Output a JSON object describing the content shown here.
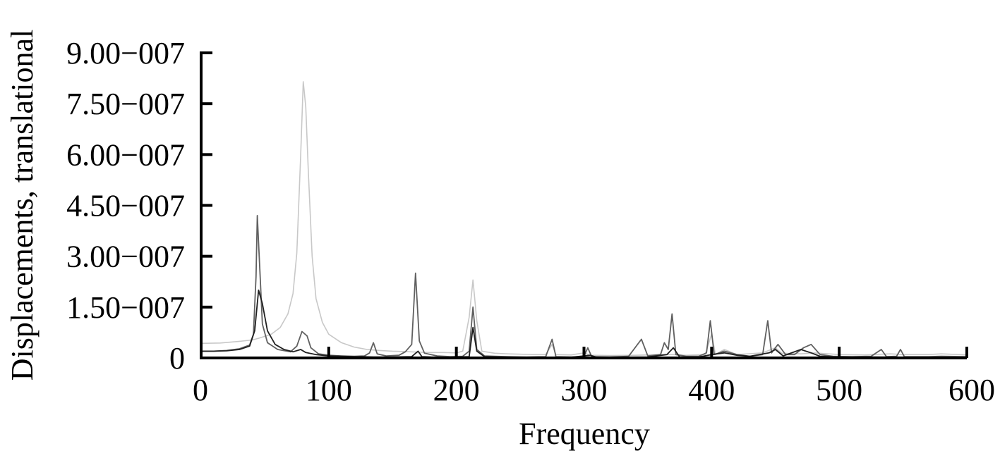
{
  "chart_data": {
    "type": "line",
    "title": "",
    "xlabel": "Frequency",
    "ylabel": "Displacements, translational",
    "xlim": [
      0,
      600
    ],
    "ylim": [
      0,
      9e-07
    ],
    "grid": false,
    "legend": "none",
    "x_ticks": [
      {
        "value": 0,
        "label": "0"
      },
      {
        "value": 100,
        "label": "100"
      },
      {
        "value": 200,
        "label": "200"
      },
      {
        "value": 300,
        "label": "300"
      },
      {
        "value": 400,
        "label": "400"
      },
      {
        "value": 500,
        "label": "500"
      },
      {
        "value": 600,
        "label": "600"
      }
    ],
    "y_ticks": [
      {
        "value": 0,
        "label": "0"
      },
      {
        "value": 1.5e-07,
        "label": "1.50−007"
      },
      {
        "value": 3e-07,
        "label": "3.00−007"
      },
      {
        "value": 4.5e-07,
        "label": "4.50−007"
      },
      {
        "value": 6e-07,
        "label": "6.00−007"
      },
      {
        "value": 7.5e-07,
        "label": "7.50−007"
      },
      {
        "value": 9e-07,
        "label": "9.00−007"
      }
    ],
    "series": [
      {
        "color": "#c8c8c8",
        "points": [
          [
            0,
            4.3e-08
          ],
          [
            15,
            4.4e-08
          ],
          [
            30,
            4.9e-08
          ],
          [
            40,
            5.3e-08
          ],
          [
            45,
            5.8e-08
          ],
          [
            55,
            7e-08
          ],
          [
            62,
            9e-08
          ],
          [
            68,
            1.3e-07
          ],
          [
            72,
            1.9e-07
          ],
          [
            75,
            3.1e-07
          ],
          [
            78,
            6e-07
          ],
          [
            80,
            8.15e-07
          ],
          [
            82,
            7.4e-07
          ],
          [
            84,
            5.5e-07
          ],
          [
            87,
            3e-07
          ],
          [
            90,
            1.75e-07
          ],
          [
            95,
            1.05e-07
          ],
          [
            100,
            7e-08
          ],
          [
            110,
            4.5e-08
          ],
          [
            120,
            3.2e-08
          ],
          [
            130,
            2.5e-08
          ],
          [
            140,
            2.2e-08
          ],
          [
            150,
            2e-08
          ],
          [
            160,
            1.9e-08
          ],
          [
            170,
            1.7e-08
          ],
          [
            180,
            1.6e-08
          ],
          [
            190,
            1.6e-08
          ],
          [
            200,
            1.5e-08
          ],
          [
            205,
            2e-08
          ],
          [
            210,
            1.2e-07
          ],
          [
            213,
            2.3e-07
          ],
          [
            216,
            1.1e-07
          ],
          [
            220,
            2e-08
          ],
          [
            230,
            1.4e-08
          ],
          [
            240,
            1.2e-08
          ],
          [
            250,
            1.1e-08
          ],
          [
            260,
            1e-08
          ],
          [
            270,
            1e-08
          ],
          [
            275,
            4e-08
          ],
          [
            278,
            1e-08
          ],
          [
            290,
            9e-09
          ],
          [
            300,
            1.5e-08
          ],
          [
            305,
            8e-09
          ],
          [
            320,
            7e-09
          ],
          [
            340,
            8e-09
          ],
          [
            350,
            9e-09
          ],
          [
            360,
            1e-08
          ],
          [
            370,
            1e-08
          ],
          [
            380,
            8e-09
          ],
          [
            395,
            1e-08
          ],
          [
            400,
            7e-08
          ],
          [
            403,
            1e-08
          ],
          [
            410,
            2.5e-08
          ],
          [
            420,
            1e-08
          ],
          [
            440,
            1.5e-08
          ],
          [
            450,
            3e-08
          ],
          [
            455,
            1.4e-08
          ],
          [
            470,
            1.2e-08
          ],
          [
            480,
            1.5e-08
          ],
          [
            500,
            1e-08
          ],
          [
            520,
            9e-09
          ],
          [
            540,
            1.2e-08
          ],
          [
            550,
            1e-08
          ],
          [
            570,
            1e-08
          ],
          [
            580,
            1.2e-08
          ],
          [
            600,
            9e-09
          ]
        ]
      },
      {
        "color": "#606060",
        "points": [
          [
            0,
            2e-08
          ],
          [
            10,
            2e-08
          ],
          [
            20,
            2.2e-08
          ],
          [
            30,
            2.7e-08
          ],
          [
            38,
            3.8e-08
          ],
          [
            41,
            7e-08
          ],
          [
            43,
            2.4e-07
          ],
          [
            44,
            4.2e-07
          ],
          [
            46,
            2.6e-07
          ],
          [
            48,
            1e-07
          ],
          [
            52,
            4.5e-08
          ],
          [
            60,
            2.5e-08
          ],
          [
            70,
            1.8e-08
          ],
          [
            75,
            3.5e-08
          ],
          [
            79,
            7.8e-08
          ],
          [
            83,
            6.5e-08
          ],
          [
            86,
            3e-08
          ],
          [
            92,
            1.2e-08
          ],
          [
            100,
            8e-09
          ],
          [
            110,
            6e-09
          ],
          [
            120,
            5e-09
          ],
          [
            128,
            6e-09
          ],
          [
            132,
            1.5e-08
          ],
          [
            135,
            4.5e-08
          ],
          [
            138,
            1.2e-08
          ],
          [
            145,
            6e-09
          ],
          [
            155,
            8e-09
          ],
          [
            160,
            1.8e-08
          ],
          [
            165,
            4e-08
          ],
          [
            168,
            2.5e-07
          ],
          [
            171,
            5e-08
          ],
          [
            175,
            1.4e-08
          ],
          [
            185,
            6e-09
          ],
          [
            195,
            4e-09
          ],
          [
            205,
            5e-09
          ],
          [
            210,
            2e-08
          ],
          [
            213,
            1.5e-07
          ],
          [
            216,
            2.5e-08
          ],
          [
            222,
            6e-09
          ],
          [
            230,
            5e-09
          ],
          [
            240,
            4e-09
          ],
          [
            255,
            3e-09
          ],
          [
            270,
            4e-09
          ],
          [
            275,
            5.5e-08
          ],
          [
            278,
            4e-09
          ],
          [
            290,
            3e-09
          ],
          [
            300,
            5e-09
          ],
          [
            303,
            3e-08
          ],
          [
            306,
            4e-09
          ],
          [
            320,
            3e-09
          ],
          [
            335,
            5e-09
          ],
          [
            345,
            5.5e-08
          ],
          [
            350,
            6e-09
          ],
          [
            360,
            1e-08
          ],
          [
            363,
            4.5e-08
          ],
          [
            366,
            2.5e-08
          ],
          [
            369,
            1.3e-07
          ],
          [
            372,
            1e-08
          ],
          [
            380,
            5e-09
          ],
          [
            390,
            5e-09
          ],
          [
            396,
            1.5e-08
          ],
          [
            399,
            1.1e-07
          ],
          [
            402,
            1e-08
          ],
          [
            410,
            2e-08
          ],
          [
            420,
            1e-08
          ],
          [
            430,
            5e-09
          ],
          [
            440,
            1e-08
          ],
          [
            444,
            1.1e-07
          ],
          [
            447,
            1.5e-08
          ],
          [
            452,
            4e-08
          ],
          [
            458,
            1e-08
          ],
          [
            465,
            1e-08
          ],
          [
            472,
            3e-08
          ],
          [
            478,
            4e-08
          ],
          [
            485,
            1e-08
          ],
          [
            495,
            5e-09
          ],
          [
            510,
            4e-09
          ],
          [
            525,
            5e-09
          ],
          [
            533,
            2.5e-08
          ],
          [
            537,
            4e-09
          ],
          [
            545,
            5e-09
          ],
          [
            548,
            2.5e-08
          ],
          [
            551,
            4e-09
          ],
          [
            570,
            4e-09
          ],
          [
            580,
            5e-09
          ],
          [
            600,
            4e-09
          ]
        ]
      },
      {
        "color": "#202020",
        "points": [
          [
            0,
            2e-08
          ],
          [
            10,
            2e-08
          ],
          [
            20,
            2.1e-08
          ],
          [
            30,
            2.5e-08
          ],
          [
            38,
            3.5e-08
          ],
          [
            42,
            8e-08
          ],
          [
            45,
            2e-07
          ],
          [
            48,
            1.6e-07
          ],
          [
            52,
            8e-08
          ],
          [
            58,
            4e-08
          ],
          [
            65,
            2.5e-08
          ],
          [
            72,
            1.8e-08
          ],
          [
            78,
            2.5e-08
          ],
          [
            82,
            1.6e-08
          ],
          [
            90,
            1e-08
          ],
          [
            100,
            6e-09
          ],
          [
            110,
            5e-09
          ],
          [
            120,
            4e-09
          ],
          [
            135,
            3e-09
          ],
          [
            150,
            3e-09
          ],
          [
            165,
            4e-09
          ],
          [
            170,
            2e-08
          ],
          [
            173,
            4e-09
          ],
          [
            180,
            3e-09
          ],
          [
            195,
            2e-09
          ],
          [
            210,
            4e-09
          ],
          [
            213,
            9e-08
          ],
          [
            216,
            2e-08
          ],
          [
            222,
            4e-09
          ],
          [
            235,
            3e-09
          ],
          [
            250,
            2e-09
          ],
          [
            270,
            2e-09
          ],
          [
            290,
            2e-09
          ],
          [
            305,
            8e-09
          ],
          [
            310,
            2e-09
          ],
          [
            330,
            2e-09
          ],
          [
            350,
            3e-09
          ],
          [
            365,
            1e-08
          ],
          [
            370,
            3e-08
          ],
          [
            375,
            3e-09
          ],
          [
            390,
            3e-09
          ],
          [
            400,
            1e-08
          ],
          [
            410,
            1.5e-08
          ],
          [
            420,
            8e-09
          ],
          [
            430,
            5e-09
          ],
          [
            445,
            1.5e-08
          ],
          [
            450,
            2.5e-08
          ],
          [
            456,
            6e-09
          ],
          [
            470,
            2.5e-08
          ],
          [
            478,
            1.5e-08
          ],
          [
            485,
            5e-09
          ],
          [
            500,
            3e-09
          ],
          [
            530,
            3e-09
          ],
          [
            560,
            2e-09
          ],
          [
            600,
            2e-09
          ]
        ]
      }
    ]
  }
}
